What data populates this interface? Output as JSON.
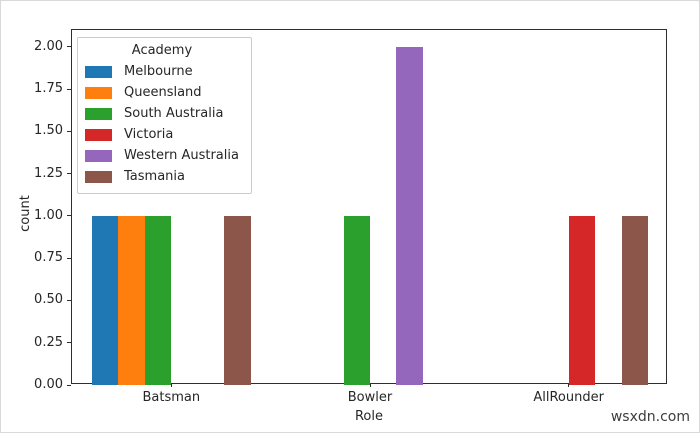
{
  "figure": {
    "watermark": "wsxdn.com"
  },
  "chart_data": {
    "type": "bar",
    "title": "",
    "xlabel": "Role",
    "ylabel": "count",
    "categories": [
      "Batsman",
      "Bowler",
      "AllRounder"
    ],
    "series": [
      {
        "name": "Melbourne",
        "color": "#1f77b4",
        "values": [
          1,
          0,
          0
        ]
      },
      {
        "name": "Queensland",
        "color": "#ff7f0e",
        "values": [
          1,
          0,
          0
        ]
      },
      {
        "name": "South Australia",
        "color": "#2ca02c",
        "values": [
          1,
          1,
          0
        ]
      },
      {
        "name": "Victoria",
        "color": "#d62728",
        "values": [
          0,
          0,
          1
        ]
      },
      {
        "name": "Western Australia",
        "color": "#9467bd",
        "values": [
          0,
          2,
          0
        ]
      },
      {
        "name": "Tasmania",
        "color": "#8c564b",
        "values": [
          1,
          0,
          1
        ]
      }
    ],
    "ylim": [
      0,
      2.1
    ],
    "ytick_labels": [
      "0.00",
      "0.25",
      "0.50",
      "0.75",
      "1.00",
      "1.25",
      "1.50",
      "1.75",
      "2.00"
    ],
    "legend": {
      "title": "Academy",
      "position": "upper left"
    },
    "grid": false,
    "bar_group_width": 0.8
  }
}
